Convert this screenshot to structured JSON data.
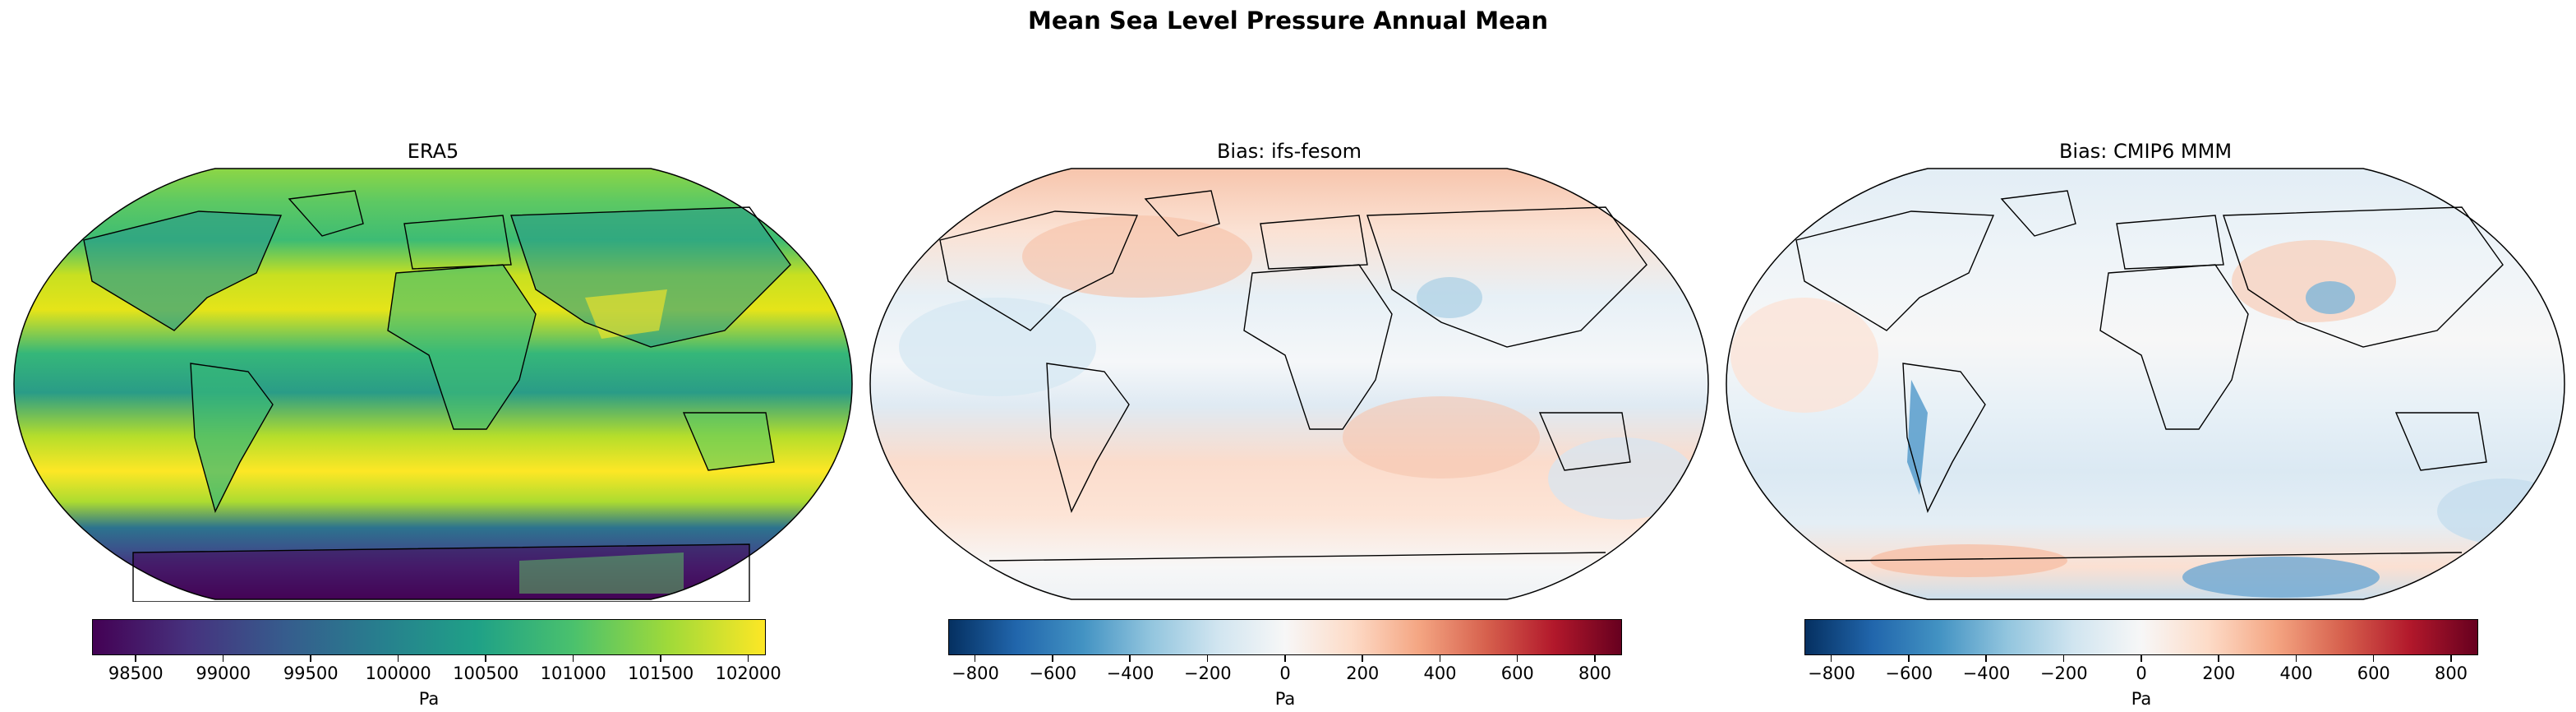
{
  "figure": {
    "title": "Mean Sea Level Pressure Annual Mean"
  },
  "panels": [
    {
      "title": "ERA5",
      "colormap": "viridis",
      "colorbar": {
        "label": "Pa",
        "vmin": 98250,
        "vmax": 102100,
        "ticks": [
          "98500",
          "99000",
          "99500",
          "100000",
          "100500",
          "101000",
          "101500",
          "102000"
        ],
        "tick_values": [
          98500,
          99000,
          99500,
          100000,
          100500,
          101000,
          101500,
          102000
        ],
        "colors": [
          "#440154",
          "#46327e",
          "#365c8d",
          "#277f8e",
          "#1fa187",
          "#4ac16d",
          "#a0da39",
          "#fde725"
        ]
      }
    },
    {
      "title": "Bias: ifs-fesom",
      "colormap": "RdBu_r",
      "colorbar": {
        "label": "Pa",
        "vmin": -870,
        "vmax": 870,
        "ticks": [
          "−800",
          "−600",
          "−400",
          "−200",
          "0",
          "200",
          "400",
          "600",
          "800"
        ],
        "tick_values": [
          -800,
          -600,
          -400,
          -200,
          0,
          200,
          400,
          600,
          800
        ],
        "colors": [
          "#053061",
          "#2166ac",
          "#4393c3",
          "#92c5de",
          "#d1e5f0",
          "#f7f7f7",
          "#fddbc7",
          "#f4a582",
          "#d6604d",
          "#b2182b",
          "#67001f"
        ]
      }
    },
    {
      "title": "Bias: CMIP6 MMM",
      "colormap": "RdBu_r",
      "colorbar": {
        "label": "Pa",
        "vmin": -870,
        "vmax": 870,
        "ticks": [
          "−800",
          "−600",
          "−400",
          "−200",
          "0",
          "200",
          "400",
          "600",
          "800"
        ],
        "tick_values": [
          -800,
          -600,
          -400,
          -200,
          0,
          200,
          400,
          600,
          800
        ],
        "colors": [
          "#053061",
          "#2166ac",
          "#4393c3",
          "#92c5de",
          "#d1e5f0",
          "#f7f7f7",
          "#fddbc7",
          "#f4a582",
          "#d6604d",
          "#b2182b",
          "#67001f"
        ]
      }
    }
  ]
}
